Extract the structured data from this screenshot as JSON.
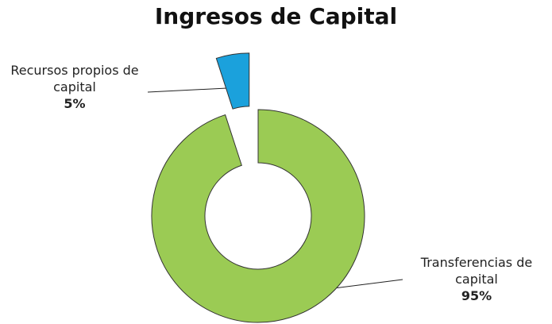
{
  "chart_data": {
    "type": "donut",
    "title": "Ingresos de Capital",
    "categories": [
      "Recursos propios de capital",
      "Transferencias de capital"
    ],
    "values": [
      5,
      95
    ],
    "value_labels": [
      "5%",
      "95%"
    ],
    "colors": [
      "#1ba1dc",
      "#9bcb54"
    ]
  }
}
